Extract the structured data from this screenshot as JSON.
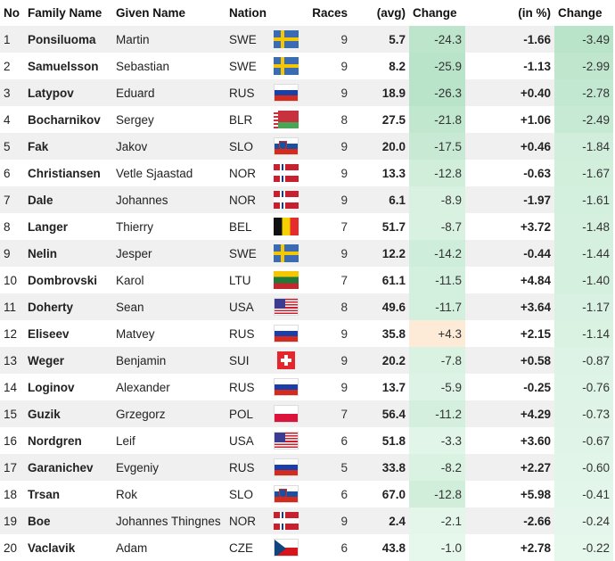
{
  "headers": {
    "no": "No",
    "family": "Family Name",
    "given": "Given Name",
    "nation": "Nation",
    "races": "Races",
    "avg": "(avg)",
    "change1": "Change",
    "inpct": "(in %)",
    "change2": "Change"
  },
  "colors": {
    "green_strong": "#b9e4c9",
    "green_light": "#e6f7ec",
    "orange_light": "#fdebd7"
  },
  "rows": [
    {
      "no": "1",
      "family": "Ponsiluoma",
      "given": "Martin",
      "nation": "SWE",
      "flag": "sweden-flag-icon",
      "races": "9",
      "avg": "5.7",
      "change1": "-24.3",
      "inpct": "-1.66",
      "change2": "-3.49"
    },
    {
      "no": "2",
      "family": "Samuelsson",
      "given": "Sebastian",
      "nation": "SWE",
      "flag": "sweden-flag-icon",
      "races": "9",
      "avg": "8.2",
      "change1": "-25.9",
      "inpct": "-1.13",
      "change2": "-2.99"
    },
    {
      "no": "3",
      "family": "Latypov",
      "given": "Eduard",
      "nation": "RUS",
      "flag": "russia-flag-icon",
      "races": "9",
      "avg": "18.9",
      "change1": "-26.3",
      "inpct": "+0.40",
      "change2": "-2.78"
    },
    {
      "no": "4",
      "family": "Bocharnikov",
      "given": "Sergey",
      "nation": "BLR",
      "flag": "belarus-flag-icon",
      "races": "8",
      "avg": "27.5",
      "change1": "-21.8",
      "inpct": "+1.06",
      "change2": "-2.49"
    },
    {
      "no": "5",
      "family": "Fak",
      "given": "Jakov",
      "nation": "SLO",
      "flag": "slovenia-flag-icon",
      "races": "9",
      "avg": "20.0",
      "change1": "-17.5",
      "inpct": "+0.46",
      "change2": "-1.84"
    },
    {
      "no": "6",
      "family": "Christiansen",
      "given": "Vetle Sjaastad",
      "nation": "NOR",
      "flag": "norway-flag-icon",
      "races": "9",
      "avg": "13.3",
      "change1": "-12.8",
      "inpct": "-0.63",
      "change2": "-1.67"
    },
    {
      "no": "7",
      "family": "Dale",
      "given": "Johannes",
      "nation": "NOR",
      "flag": "norway-flag-icon",
      "races": "9",
      "avg": "6.1",
      "change1": "-8.9",
      "inpct": "-1.97",
      "change2": "-1.61"
    },
    {
      "no": "8",
      "family": "Langer",
      "given": "Thierry",
      "nation": "BEL",
      "flag": "belgium-flag-icon",
      "races": "7",
      "avg": "51.7",
      "change1": "-8.7",
      "inpct": "+3.72",
      "change2": "-1.48"
    },
    {
      "no": "9",
      "family": "Nelin",
      "given": "Jesper",
      "nation": "SWE",
      "flag": "sweden-flag-icon",
      "races": "9",
      "avg": "12.2",
      "change1": "-14.2",
      "inpct": "-0.44",
      "change2": "-1.44"
    },
    {
      "no": "10",
      "family": "Dombrovski",
      "given": "Karol",
      "nation": "LTU",
      "flag": "lithuania-flag-icon",
      "races": "7",
      "avg": "61.1",
      "change1": "-11.5",
      "inpct": "+4.84",
      "change2": "-1.40"
    },
    {
      "no": "11",
      "family": "Doherty",
      "given": "Sean",
      "nation": "USA",
      "flag": "usa-flag-icon",
      "races": "8",
      "avg": "49.6",
      "change1": "-11.7",
      "inpct": "+3.64",
      "change2": "-1.17"
    },
    {
      "no": "12",
      "family": "Eliseev",
      "given": "Matvey",
      "nation": "RUS",
      "flag": "russia-flag-icon",
      "races": "9",
      "avg": "35.8",
      "change1": "+4.3",
      "inpct": "+2.15",
      "change2": "-1.14"
    },
    {
      "no": "13",
      "family": "Weger",
      "given": "Benjamin",
      "nation": "SUI",
      "flag": "switzerland-flag-icon",
      "races": "9",
      "avg": "20.2",
      "change1": "-7.8",
      "inpct": "+0.58",
      "change2": "-0.87"
    },
    {
      "no": "14",
      "family": "Loginov",
      "given": "Alexander",
      "nation": "RUS",
      "flag": "russia-flag-icon",
      "races": "9",
      "avg": "13.7",
      "change1": "-5.9",
      "inpct": "-0.25",
      "change2": "-0.76"
    },
    {
      "no": "15",
      "family": "Guzik",
      "given": "Grzegorz",
      "nation": "POL",
      "flag": "poland-flag-icon",
      "races": "7",
      "avg": "56.4",
      "change1": "-11.2",
      "inpct": "+4.29",
      "change2": "-0.73"
    },
    {
      "no": "16",
      "family": "Nordgren",
      "given": "Leif",
      "nation": "USA",
      "flag": "usa-flag-icon",
      "races": "6",
      "avg": "51.8",
      "change1": "-3.3",
      "inpct": "+3.60",
      "change2": "-0.67"
    },
    {
      "no": "17",
      "family": "Garanichev",
      "given": "Evgeniy",
      "nation": "RUS",
      "flag": "russia-flag-icon",
      "races": "5",
      "avg": "33.8",
      "change1": "-8.2",
      "inpct": "+2.27",
      "change2": "-0.60"
    },
    {
      "no": "18",
      "family": "Trsan",
      "given": "Rok",
      "nation": "SLO",
      "flag": "slovenia-flag-icon",
      "races": "6",
      "avg": "67.0",
      "change1": "-12.8",
      "inpct": "+5.98",
      "change2": "-0.41"
    },
    {
      "no": "19",
      "family": "Boe",
      "given": "Johannes Thingnes",
      "nation": "NOR",
      "flag": "norway-flag-icon",
      "races": "9",
      "avg": "2.4",
      "change1": "-2.1",
      "inpct": "-2.66",
      "change2": "-0.24"
    },
    {
      "no": "20",
      "family": "Vaclavik",
      "given": "Adam",
      "nation": "CZE",
      "flag": "czech-flag-icon",
      "races": "6",
      "avg": "43.8",
      "change1": "-1.0",
      "inpct": "+2.78",
      "change2": "-0.22"
    }
  ]
}
